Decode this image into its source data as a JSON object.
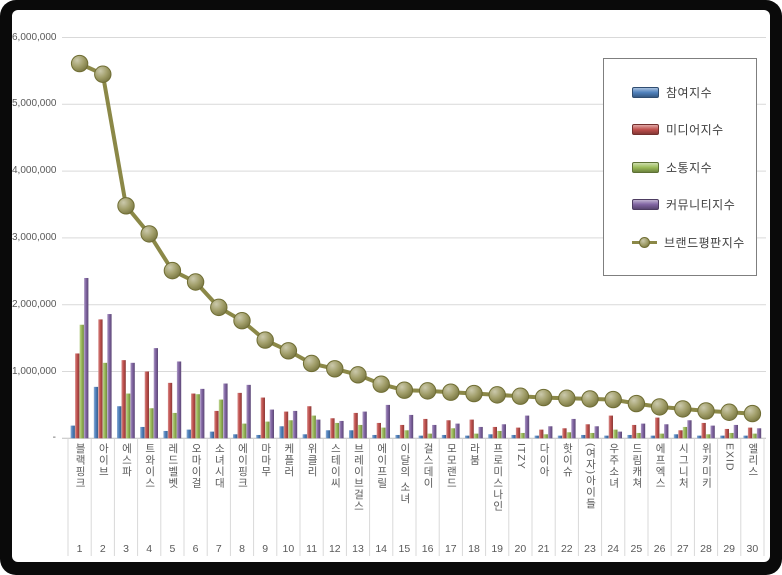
{
  "frame": {
    "background": "#0a0a0a",
    "panel_background": "#ffffff",
    "gridline_color": "#d9d9d9",
    "axis_line_color": "#bfbfbf",
    "separator_color": "#d9d9d9",
    "axis_text_color": "#595959",
    "legend_border_color": "#7f7f7f"
  },
  "chart_data": {
    "type": "bar",
    "subtype": "grouped-bars-with-line-overlay",
    "title": "",
    "xlabel": "",
    "ylabel": "",
    "ylim": [
      0,
      6000000
    ],
    "grid": true,
    "legend_position": "right-top",
    "y_ticks": [
      {
        "label": "6,000,000",
        "value": 6000000
      },
      {
        "label": "5,000,000",
        "value": 5000000
      },
      {
        "label": "4,000,000",
        "value": 4000000
      },
      {
        "label": "3,000,000",
        "value": 3000000
      },
      {
        "label": "2,000,000",
        "value": 2000000
      },
      {
        "label": "1,000,000",
        "value": 1000000
      },
      {
        "label": "-",
        "value": 0
      }
    ],
    "categories": [
      "블랙핑크",
      "아이브",
      "에스파",
      "트와이스",
      "레드벨벳",
      "오마이걸",
      "소녀시대",
      "에이핑크",
      "마마무",
      "케플러",
      "위클리",
      "스테이씨",
      "브레이브걸스",
      "에이프릴",
      "이달의 소녀",
      "걸스데이",
      "모모랜드",
      "라붐",
      "프로미스나인",
      "ITZY",
      "다이아",
      "핫이슈",
      "(여자)아이들",
      "우주소녀",
      "드림캐쳐",
      "에프엑스",
      "시그니처",
      "위키미키",
      "EXID",
      "엘리스"
    ],
    "ranks": [
      "1",
      "2",
      "3",
      "4",
      "5",
      "6",
      "7",
      "8",
      "9",
      "10",
      "11",
      "12",
      "13",
      "14",
      "15",
      "16",
      "17",
      "18",
      "19",
      "20",
      "21",
      "22",
      "23",
      "24",
      "25",
      "26",
      "27",
      "28",
      "29",
      "30"
    ],
    "series": [
      {
        "name": "참여지수",
        "type": "bar",
        "color": "#4f81bd",
        "values": [
          190000,
          770000,
          480000,
          170000,
          110000,
          130000,
          100000,
          60000,
          50000,
          180000,
          60000,
          120000,
          120000,
          50000,
          50000,
          40000,
          50000,
          40000,
          60000,
          50000,
          40000,
          40000,
          50000,
          40000,
          50000,
          40000,
          60000,
          40000,
          40000,
          40000
        ]
      },
      {
        "name": "미디어지수",
        "type": "bar",
        "color": "#c0504d",
        "values": [
          1270000,
          1780000,
          1170000,
          1000000,
          830000,
          670000,
          410000,
          680000,
          610000,
          400000,
          480000,
          300000,
          380000,
          230000,
          200000,
          290000,
          270000,
          280000,
          170000,
          160000,
          130000,
          150000,
          210000,
          340000,
          200000,
          310000,
          120000,
          230000,
          140000,
          160000
        ]
      },
      {
        "name": "소통지수",
        "type": "bar",
        "color": "#9bbb59",
        "values": [
          1700000,
          1130000,
          670000,
          450000,
          380000,
          660000,
          580000,
          220000,
          250000,
          270000,
          340000,
          230000,
          200000,
          160000,
          120000,
          70000,
          150000,
          70000,
          110000,
          80000,
          60000,
          90000,
          80000,
          130000,
          80000,
          70000,
          170000,
          60000,
          80000,
          70000
        ]
      },
      {
        "name": "커뮤니티지수",
        "type": "bar",
        "color": "#8064a2",
        "values": [
          2400000,
          1860000,
          1130000,
          1350000,
          1150000,
          740000,
          820000,
          800000,
          430000,
          410000,
          280000,
          260000,
          400000,
          500000,
          350000,
          200000,
          220000,
          170000,
          210000,
          340000,
          180000,
          290000,
          180000,
          100000,
          220000,
          210000,
          270000,
          190000,
          200000,
          150000
        ]
      },
      {
        "name": "브랜드평판지수",
        "type": "line",
        "color": "#8b8847",
        "marker_edge": "#6f6d33",
        "values": [
          5610000,
          5450000,
          3480000,
          3060000,
          2510000,
          2340000,
          1960000,
          1760000,
          1470000,
          1310000,
          1120000,
          1040000,
          950000,
          810000,
          720000,
          710000,
          690000,
          670000,
          650000,
          630000,
          610000,
          600000,
          590000,
          580000,
          520000,
          470000,
          440000,
          410000,
          390000,
          370000
        ]
      }
    ]
  }
}
